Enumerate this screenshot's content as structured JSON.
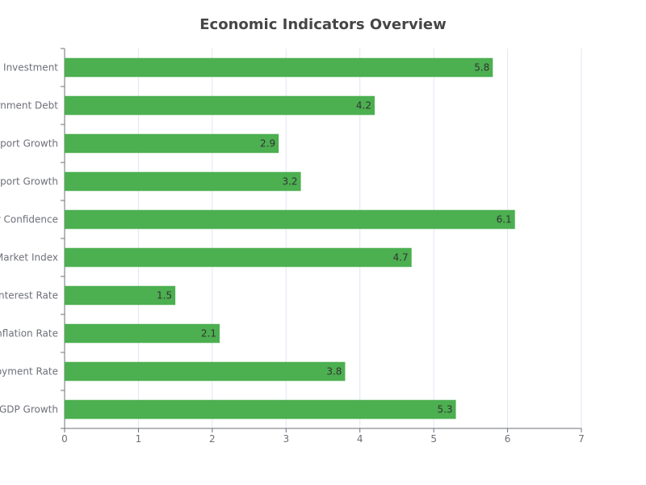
{
  "chart_data": {
    "type": "bar",
    "orientation": "horizontal",
    "title": "Economic Indicators Overview",
    "categories": [
      "GDP Growth",
      "Unemployment Rate",
      "Inflation Rate",
      "Interest Rate",
      "Stock Market Index",
      "Consumer Confidence",
      "Export Growth",
      "Import Growth",
      "Government Debt",
      "Foreign Investment"
    ],
    "visible_category_labels": [
      "GDP Growth",
      "oyment Rate",
      "nflation Rate",
      "Interest Rate",
      "Market Index",
      "r Confidence",
      "xport Growth",
      "nport Growth",
      "rnment Debt",
      "n Investment"
    ],
    "values": [
      5.3,
      3.8,
      2.1,
      1.5,
      4.7,
      6.1,
      3.2,
      2.9,
      4.2,
      5.8
    ],
    "xlim": [
      0,
      7
    ],
    "xticks": [
      "0",
      "1",
      "2",
      "3",
      "4",
      "5",
      "6",
      "7"
    ],
    "xlabel": "",
    "ylabel": "",
    "grid": true,
    "bar_color": "#4caf50",
    "data_labels": "inside-end"
  }
}
